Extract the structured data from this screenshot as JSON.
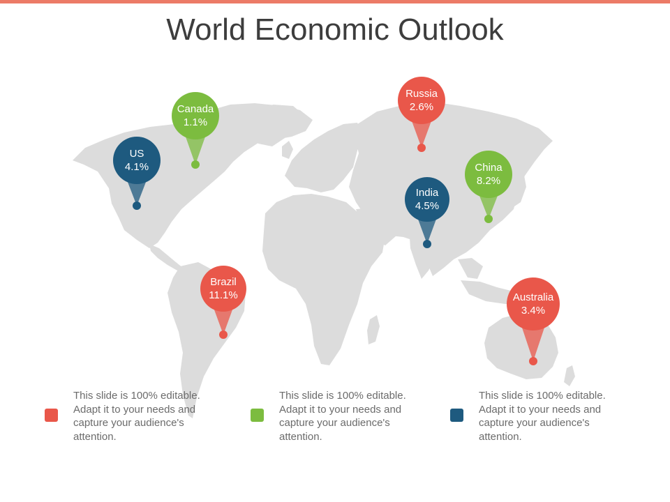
{
  "title": "World Economic Outlook",
  "colors": {
    "red": "#e9574a",
    "green": "#7cbc3f",
    "blue": "#1e5a7f",
    "accent_bar": "#ec7b67",
    "land": "#dcdcdc"
  },
  "markers": [
    {
      "name": "US",
      "value": "4.1%",
      "color": "blue"
    },
    {
      "name": "Canada",
      "value": "1.1%",
      "color": "green"
    },
    {
      "name": "Russia",
      "value": "2.6%",
      "color": "red"
    },
    {
      "name": "China",
      "value": "8.2%",
      "color": "green"
    },
    {
      "name": "India",
      "value": "4.5%",
      "color": "blue"
    },
    {
      "name": "Brazil",
      "value": "11.1%",
      "color": "red"
    },
    {
      "name": "Australia",
      "value": "3.4%",
      "color": "red"
    }
  ],
  "legend": [
    {
      "color": "red",
      "text": "This slide is 100% editable. Adapt it to your needs and capture your audience's attention."
    },
    {
      "color": "green",
      "text": "This slide is 100% editable. Adapt it to your needs and capture your audience's attention."
    },
    {
      "color": "blue",
      "text": "This slide is 100% editable. Adapt it to your needs and capture your audience's attention."
    }
  ]
}
